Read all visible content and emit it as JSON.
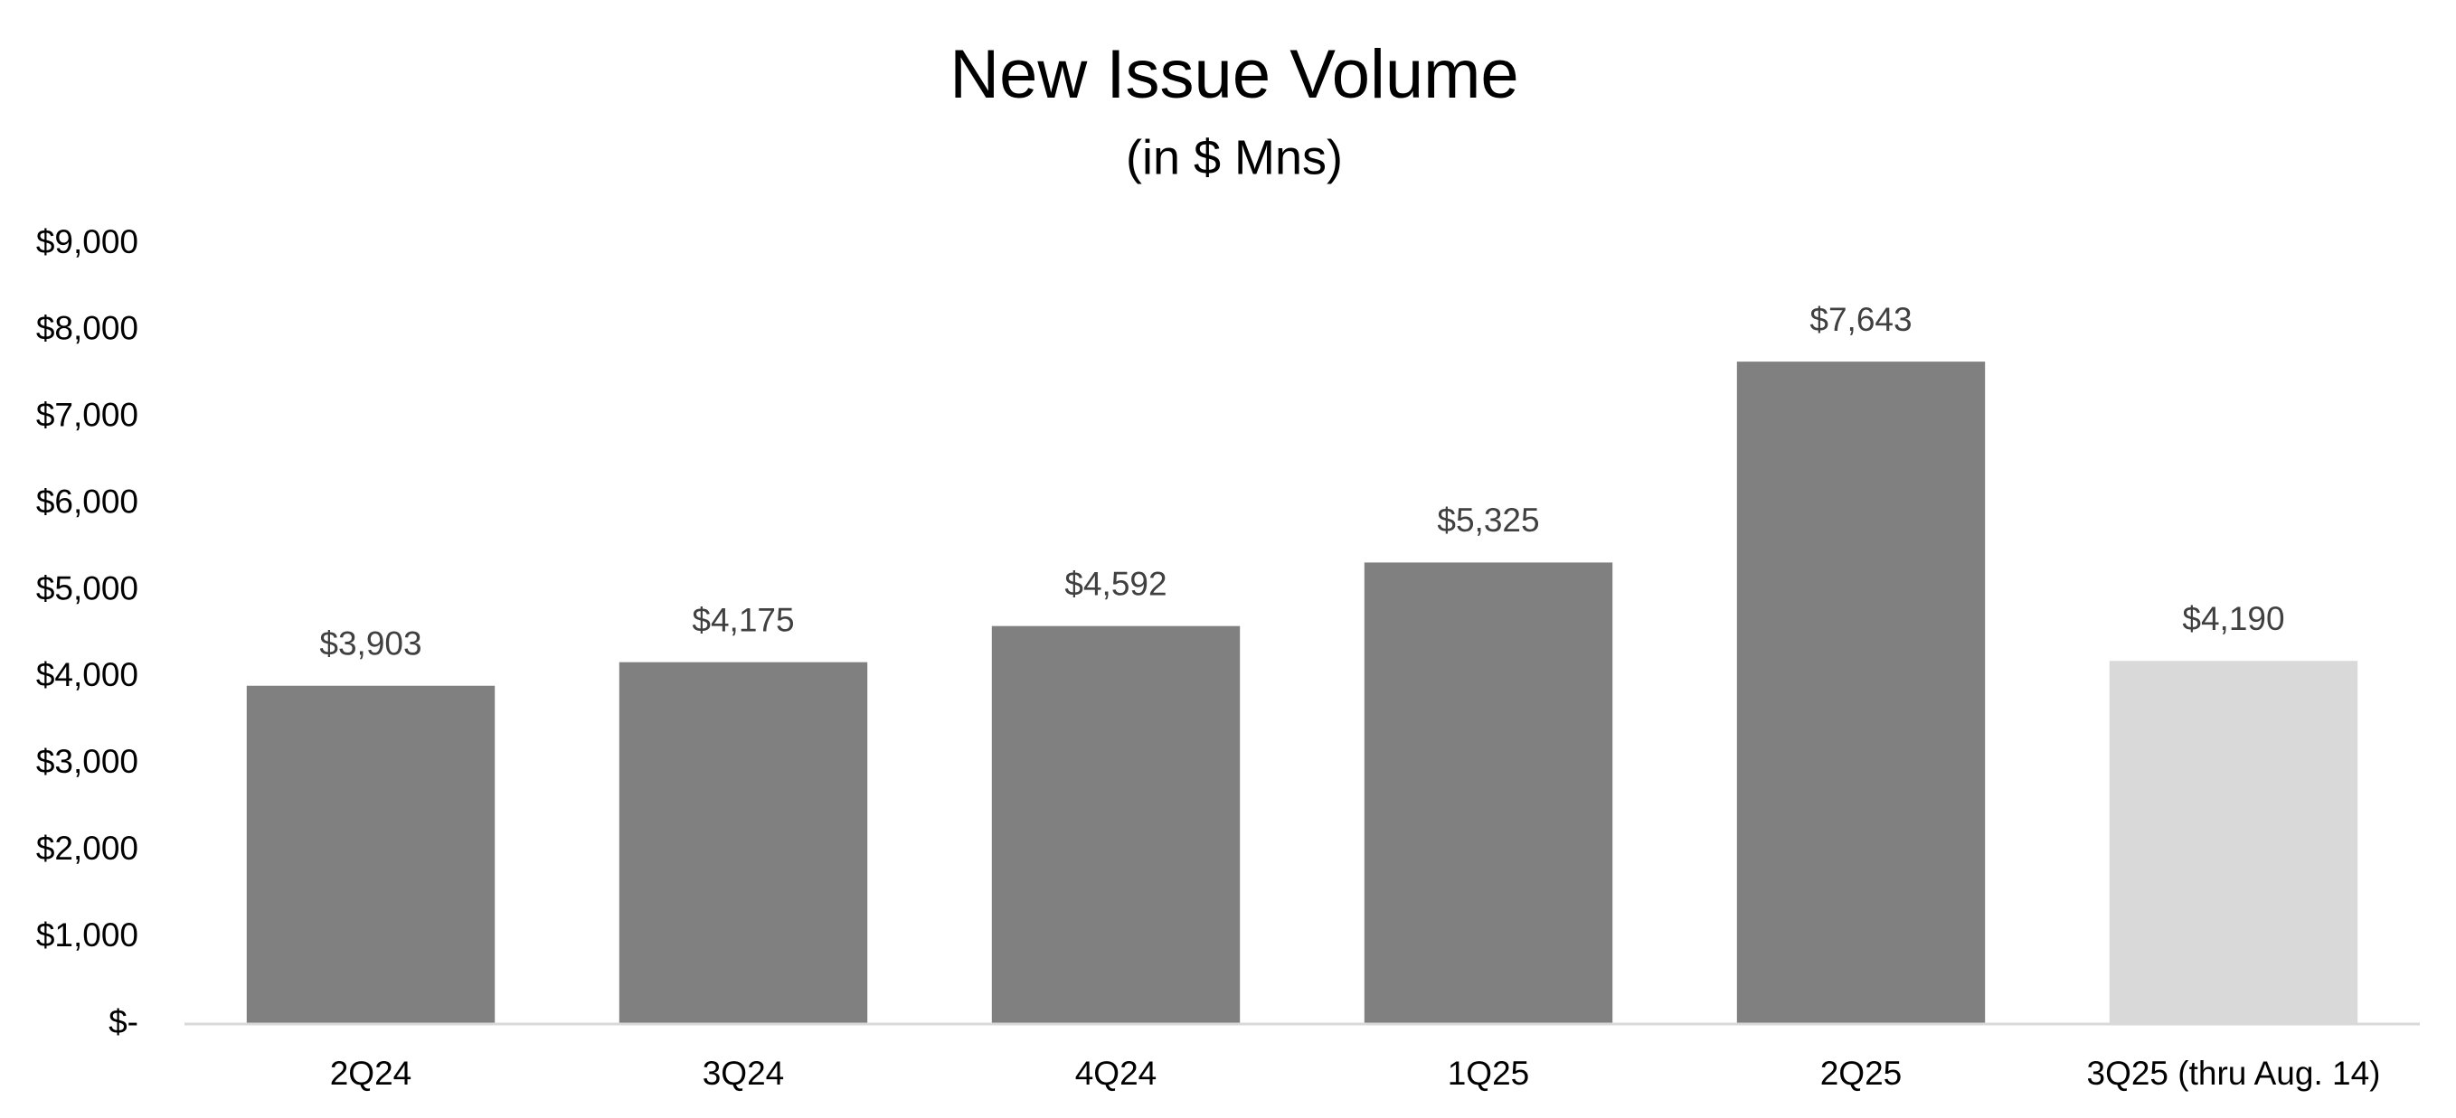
{
  "chart_data": {
    "type": "bar",
    "title": "New Issue Volume",
    "subtitle": "(in $ Mns)",
    "categories": [
      "2Q24",
      "3Q24",
      "4Q24",
      "1Q25",
      "2Q25",
      "3Q25 (thru Aug. 14)"
    ],
    "values": [
      3903,
      4175,
      4592,
      5325,
      7643,
      4190
    ],
    "value_labels": [
      "$3,903",
      "$4,175",
      "$4,592",
      "$5,325",
      "$7,643",
      "$4,190"
    ],
    "colors": [
      "#808080",
      "#808080",
      "#808080",
      "#808080",
      "#808080",
      "#d9d9d9"
    ],
    "ylim": [
      0,
      9000
    ],
    "yticks": [
      {
        "value": 0,
        "label": "$-"
      },
      {
        "value": 1000,
        "label": "$1,000"
      },
      {
        "value": 2000,
        "label": "$2,000"
      },
      {
        "value": 3000,
        "label": "$3,000"
      },
      {
        "value": 4000,
        "label": "$4,000"
      },
      {
        "value": 5000,
        "label": "$5,000"
      },
      {
        "value": 6000,
        "label": "$6,000"
      },
      {
        "value": 7000,
        "label": "$7,000"
      },
      {
        "value": 8000,
        "label": "$8,000"
      },
      {
        "value": 9000,
        "label": "$9,000"
      }
    ],
    "grid": false
  }
}
